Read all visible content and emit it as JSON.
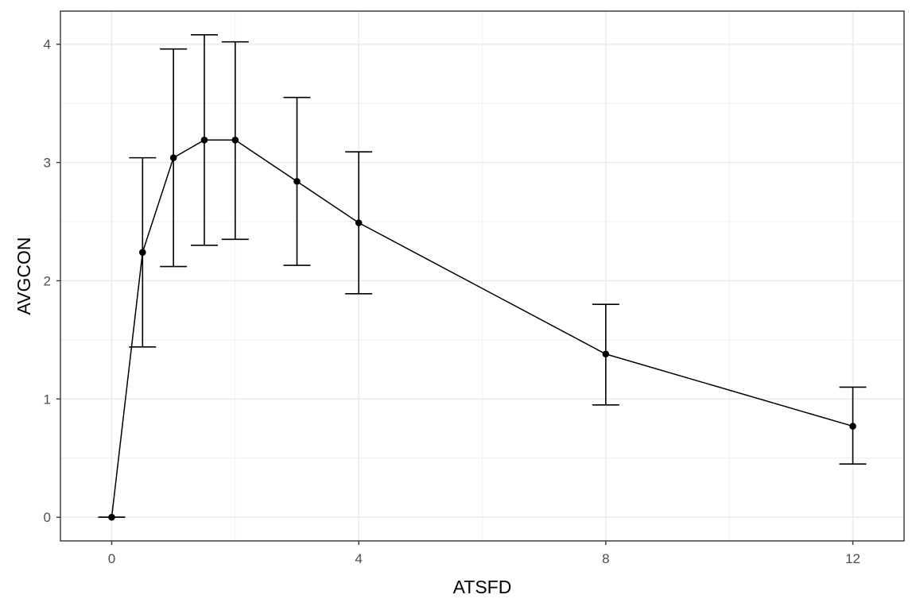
{
  "chart_data": {
    "type": "line",
    "xlabel": "ATSFD",
    "ylabel": "AVGCON",
    "xlim": [
      -0.83,
      12.83
    ],
    "ylim": [
      -0.2,
      4.28
    ],
    "x_ticks": [
      0,
      4,
      8,
      12
    ],
    "x_minor_ticks": [
      2,
      6,
      10
    ],
    "y_ticks": [
      0,
      1,
      2,
      3,
      4
    ],
    "y_minor_ticks": [
      0.5,
      1.5,
      2.5,
      3.5
    ],
    "grid": true,
    "legend": "none",
    "series": [
      {
        "x": [
          0,
          0.5,
          1,
          1.5,
          2,
          3,
          4,
          8,
          12
        ],
        "y": [
          0,
          2.24,
          3.04,
          3.19,
          3.19,
          2.84,
          2.49,
          1.38,
          0.77
        ],
        "error_low": [
          0,
          1.44,
          2.12,
          2.3,
          2.35,
          2.13,
          1.89,
          0.95,
          0.45
        ],
        "error_high": [
          0,
          3.04,
          3.96,
          4.08,
          4.02,
          3.55,
          3.09,
          1.8,
          1.1
        ]
      }
    ],
    "colors": {
      "line": "#000000",
      "point": "#000000",
      "error_bar": "#000000",
      "grid": "#ebebeb",
      "panel_border": "#333333",
      "tick_label": "#4d4d4d"
    }
  }
}
